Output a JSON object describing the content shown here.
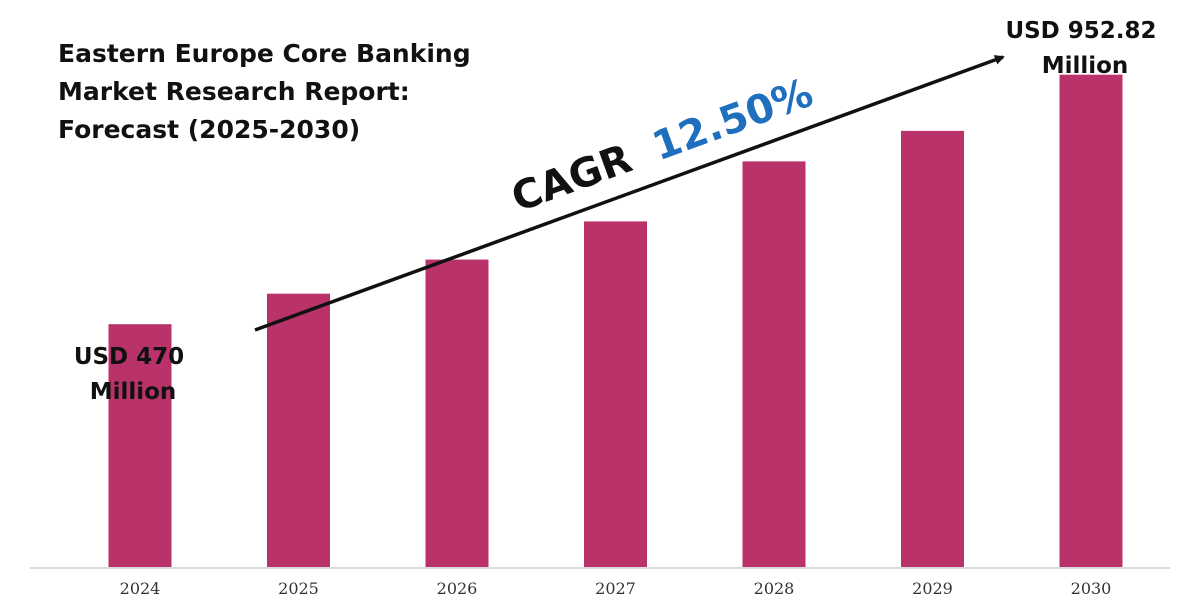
{
  "chart_data": {
    "type": "bar",
    "title": [
      "Eastern Europe Core Banking",
      "Market Research Report:",
      "Forecast (2025-2030)"
    ],
    "categories": [
      "2024",
      "2025",
      "2026",
      "2027",
      "2028",
      "2029",
      "2030"
    ],
    "values": [
      470,
      529,
      595,
      669,
      785,
      844,
      952.82
    ],
    "bar_color": "#b9336a",
    "ylim": [
      0,
      1020
    ],
    "grid": false,
    "annotations": {
      "start": [
        "USD 470",
        "Million"
      ],
      "end": [
        "USD 952.82",
        "Million"
      ],
      "cagr_prefix": "CAGR",
      "cagr_value": "12.50%",
      "cagr_prefix_color": "#111111",
      "cagr_value_color": "#1f6fbf"
    }
  }
}
